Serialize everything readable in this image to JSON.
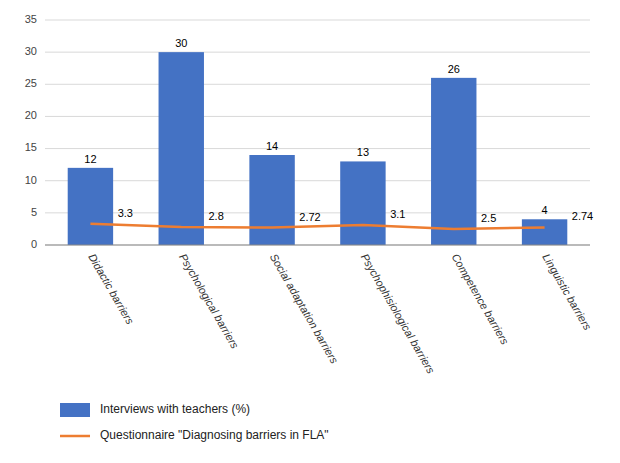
{
  "chart_data": {
    "type": "bar",
    "categories": [
      "Didactic barriers",
      "Psychological barriers",
      "Social adaptation barriers",
      "Psychophisiological barriers",
      "Competence barriers",
      "Linguistic barriers"
    ],
    "series": [
      {
        "name": "Interviews with teachers (%)",
        "type": "bar",
        "color": "#4472C4",
        "values": [
          12,
          30,
          14,
          13,
          26,
          4
        ]
      },
      {
        "name": "Questionnaire \"Diagnosing barriers in FLA\"",
        "type": "line",
        "color": "#ED7D31",
        "values": [
          3.3,
          2.8,
          2.72,
          3.1,
          2.5,
          2.74
        ]
      }
    ],
    "ylim": [
      0,
      35
    ],
    "yticks": [
      0,
      5,
      10,
      15,
      20,
      25,
      30,
      35
    ],
    "grid": true,
    "data_labels": true,
    "legend": "bottom"
  }
}
